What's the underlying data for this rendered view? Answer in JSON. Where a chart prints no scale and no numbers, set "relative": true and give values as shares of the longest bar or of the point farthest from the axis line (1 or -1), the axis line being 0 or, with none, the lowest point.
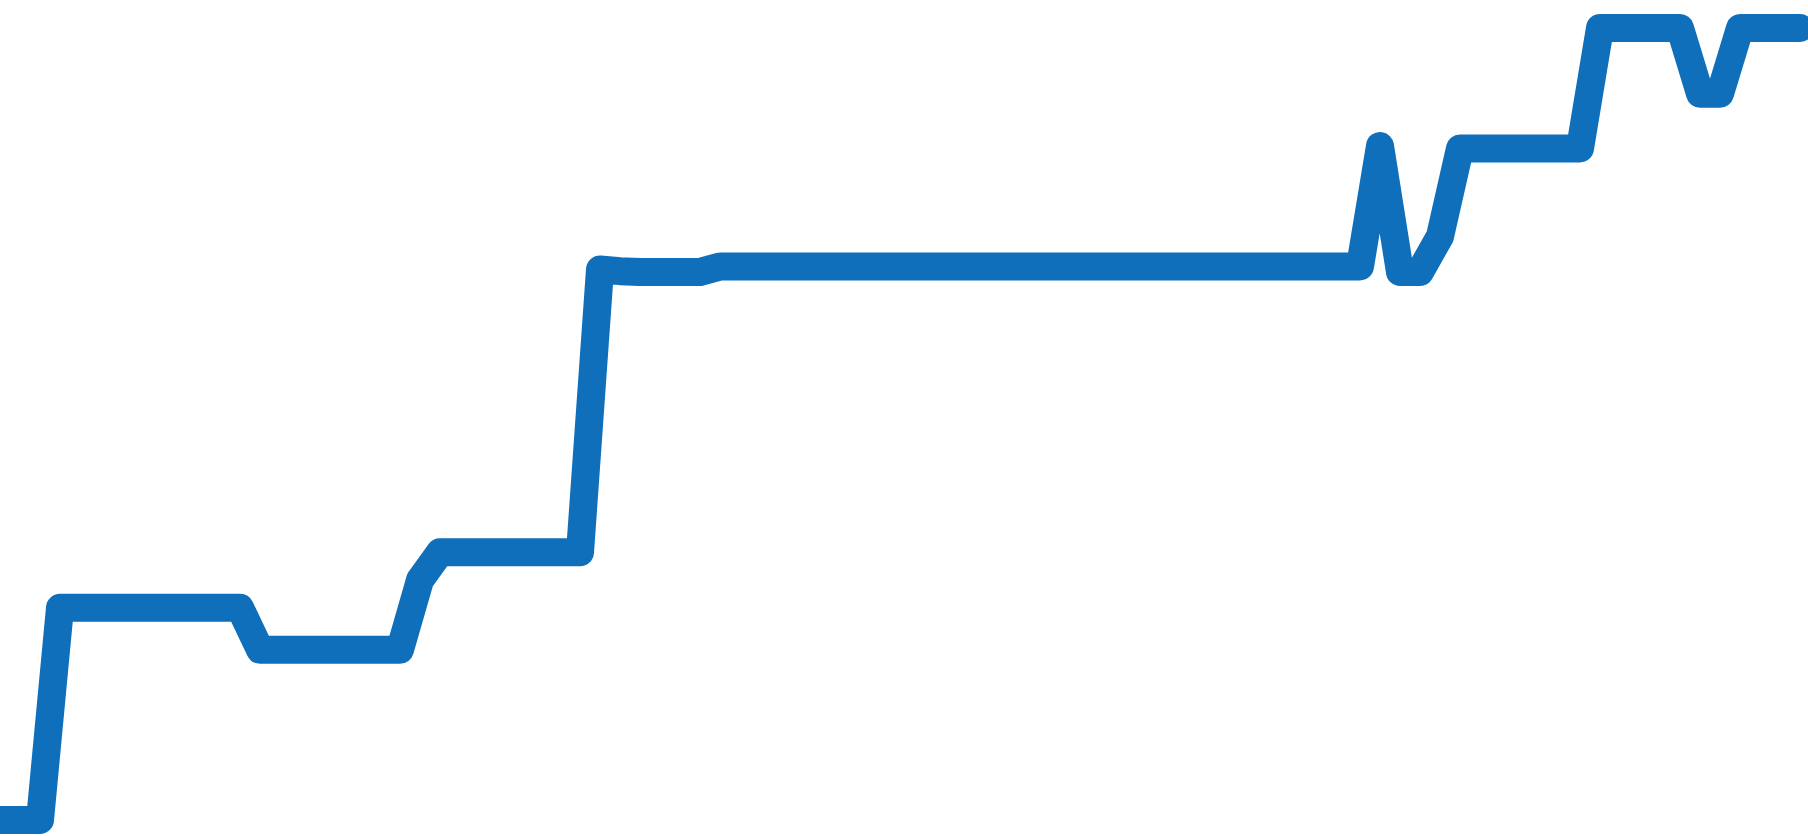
{
  "chart_data": {
    "type": "line",
    "relative": true,
    "legend": false,
    "line_style": "solid",
    "categories": [
      null,
      null,
      null,
      null,
      null,
      null,
      null,
      null,
      null,
      null,
      null,
      null,
      null,
      null,
      null,
      null,
      null,
      null,
      null,
      null,
      null,
      null,
      null,
      null,
      null,
      null,
      null,
      null,
      null,
      null,
      null,
      null,
      null,
      null,
      null,
      null,
      null,
      null,
      null,
      null,
      null,
      null,
      null,
      null,
      null,
      null,
      null,
      null,
      null,
      null,
      null,
      null,
      null,
      null,
      null,
      null,
      null,
      null,
      null,
      null,
      null,
      null,
      null,
      null,
      null,
      null,
      null,
      null,
      null,
      null,
      null,
      null,
      null,
      null,
      null,
      null,
      null,
      null,
      null,
      null,
      null,
      null,
      null,
      null,
      null,
      null,
      null,
      null,
      null,
      null,
      null
    ],
    "series": [
      {
        "color": "#0f6fba",
        "values": [
          0,
          0,
          0,
          0.268,
          0.268,
          0.268,
          0.268,
          0.268,
          0.268,
          0.268,
          0.268,
          0.268,
          0.268,
          0.215,
          0.215,
          0.215,
          0.215,
          0.215,
          0.215,
          0.215,
          0.215,
          0.303,
          0.338,
          0.338,
          0.338,
          0.338,
          0.338,
          0.338,
          0.338,
          0.338,
          0.695,
          0.693,
          0.692,
          0.692,
          0.692,
          0.692,
          0.699,
          0.699,
          0.699,
          0.699,
          0.699,
          0.699,
          0.699,
          0.699,
          0.699,
          0.699,
          0.699,
          0.699,
          0.699,
          0.699,
          0.699,
          0.699,
          0.699,
          0.699,
          0.699,
          0.699,
          0.699,
          0.699,
          0.699,
          0.699,
          0.699,
          0.699,
          0.699,
          0.699,
          0.699,
          0.699,
          0.699,
          0.699,
          0.699,
          0.851,
          0.692,
          0.692,
          0.737,
          0.848,
          0.848,
          0.848,
          0.848,
          0.848,
          0.848,
          0.848,
          1,
          1,
          1,
          1,
          1,
          0.917,
          0.917,
          1,
          1,
          1,
          1
        ]
      }
    ]
  }
}
